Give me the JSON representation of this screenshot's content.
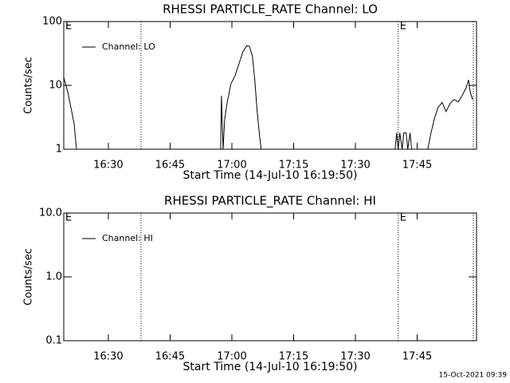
{
  "chart_data": [
    {
      "type": "line",
      "title": "RHESSI PARTICLE_RATE Channel: LO",
      "x_label": "Start Time (14-Jul-10 16:19:50)",
      "y_label": "Counts/sec",
      "log_y": true,
      "legend": "top-left",
      "xlim": [
        "16:19:10",
        "17:59:25"
      ],
      "xticks": [
        "16:30",
        "16:45",
        "17:00",
        "17:15",
        "17:30",
        "17:45"
      ],
      "ylim": [
        1,
        100
      ],
      "yticks": [
        1,
        10,
        100
      ],
      "vlines": [
        "16:37:56",
        "17:40:24",
        "17:58:38"
      ],
      "annotations": [
        {
          "x": "16:19:10",
          "text": "E"
        },
        {
          "x": "17:40:24",
          "text": "E"
        }
      ],
      "x": [
        "16:19:10",
        "16:20:08",
        "16:21:06",
        "16:21:41",
        "16:22:16",
        null,
        "16:57:16",
        "16:57:28",
        "16:57:52",
        "16:58:14",
        "16:58:49",
        "16:59:46",
        "17:00:44",
        "17:01:43",
        "17:02:40",
        "17:03:38",
        "17:04:14",
        "17:04:58",
        "17:05:33",
        "17:06:08",
        "17:06:44",
        "17:07:08",
        null,
        "17:39:38",
        "17:40:01",
        "17:40:24",
        "17:40:47",
        "17:41:22",
        "17:41:45",
        "17:42:20",
        "17:42:43",
        "17:43:17",
        "17:43:40",
        null,
        "17:47:34",
        "17:48:11",
        "17:49:06",
        "17:50:04",
        "17:51:03",
        "17:52:01",
        "17:53:00",
        "17:53:58",
        "17:54:57",
        "17:55:55",
        "17:56:54",
        "17:57:29",
        "17:57:52",
        "17:58:27"
      ],
      "series": [
        {
          "name": "Channel: LO",
          "color": "#000000",
          "values": [
            13.3,
            7.9,
            3.9,
            2.5,
            1,
            null,
            1,
            6.9,
            1,
            2.9,
            5.2,
            10.6,
            14,
            21.8,
            33.5,
            42,
            41,
            29,
            12.2,
            3.9,
            1.6,
            1,
            null,
            1,
            1.8,
            1,
            1.8,
            1,
            1.8,
            1.8,
            1,
            1.8,
            1,
            null,
            1,
            1.6,
            2.9,
            4.5,
            5.4,
            3.9,
            5.2,
            6,
            5.5,
            6.9,
            9.2,
            12.2,
            7.9,
            6
          ]
        }
      ]
    },
    {
      "type": "line",
      "title": "RHESSI PARTICLE_RATE Channel: HI",
      "x_label": "Start Time (14-Jul-10 16:19:50)",
      "y_label": "Counts/sec",
      "log_y": true,
      "legend": "top-left",
      "xlim": [
        "16:19:10",
        "17:59:25"
      ],
      "xticks": [
        "16:30",
        "16:45",
        "17:00",
        "17:15",
        "17:30",
        "17:45"
      ],
      "ylim": [
        0.1,
        10
      ],
      "yticks": [
        0.1,
        {
          "value": 1,
          "label": "1.0"
        },
        {
          "value": 10,
          "label": "10.0"
        }
      ],
      "vlines": [
        "16:37:56",
        "17:40:24",
        "17:58:38"
      ],
      "annotations": [
        {
          "x": "16:19:10",
          "text": "E"
        },
        {
          "x": "17:40:24",
          "text": "E"
        }
      ],
      "x": [],
      "series": [
        {
          "name": "Channel: HI",
          "color": "#000000",
          "values": []
        }
      ]
    }
  ],
  "footer": "15-Oct-2021 09:39"
}
